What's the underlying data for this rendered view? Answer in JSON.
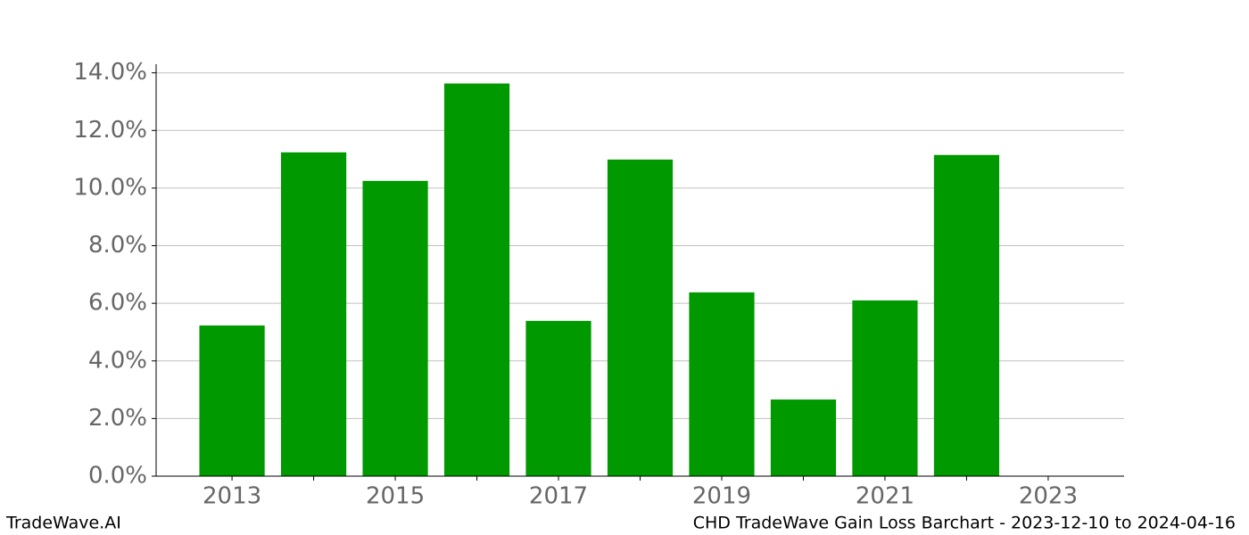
{
  "chart_data": {
    "type": "bar",
    "x": [
      2013,
      2014,
      2015,
      2016,
      2017,
      2018,
      2019,
      2020,
      2021,
      2022
    ],
    "values": [
      5.23,
      11.24,
      10.25,
      13.63,
      5.39,
      10.99,
      6.38,
      2.66,
      6.1,
      11.15
    ],
    "color": "#009900",
    "xlim": [
      2012.07,
      2023.93
    ],
    "xticks": [
      2013,
      2015,
      2017,
      2019,
      2021,
      2023
    ],
    "xminorticks": [
      2014,
      2016,
      2018,
      2020,
      2022
    ],
    "ylim": [
      0,
      14.3
    ],
    "yticks": [
      {
        "value": 0,
        "label": "0.0%"
      },
      {
        "value": 2,
        "label": "2.0%"
      },
      {
        "value": 4,
        "label": "4.0%"
      },
      {
        "value": 6,
        "label": "6.0%"
      },
      {
        "value": 8,
        "label": "8.0%"
      },
      {
        "value": 10,
        "label": "10.0%"
      },
      {
        "value": 12,
        "label": "12.0%"
      },
      {
        "value": 14,
        "label": "14.0%"
      }
    ],
    "grid": true,
    "footer_left": "TradeWave.AI",
    "footer_right": "CHD TradeWave Gain Loss Barchart - 2023-12-10 to 2024-04-16"
  }
}
